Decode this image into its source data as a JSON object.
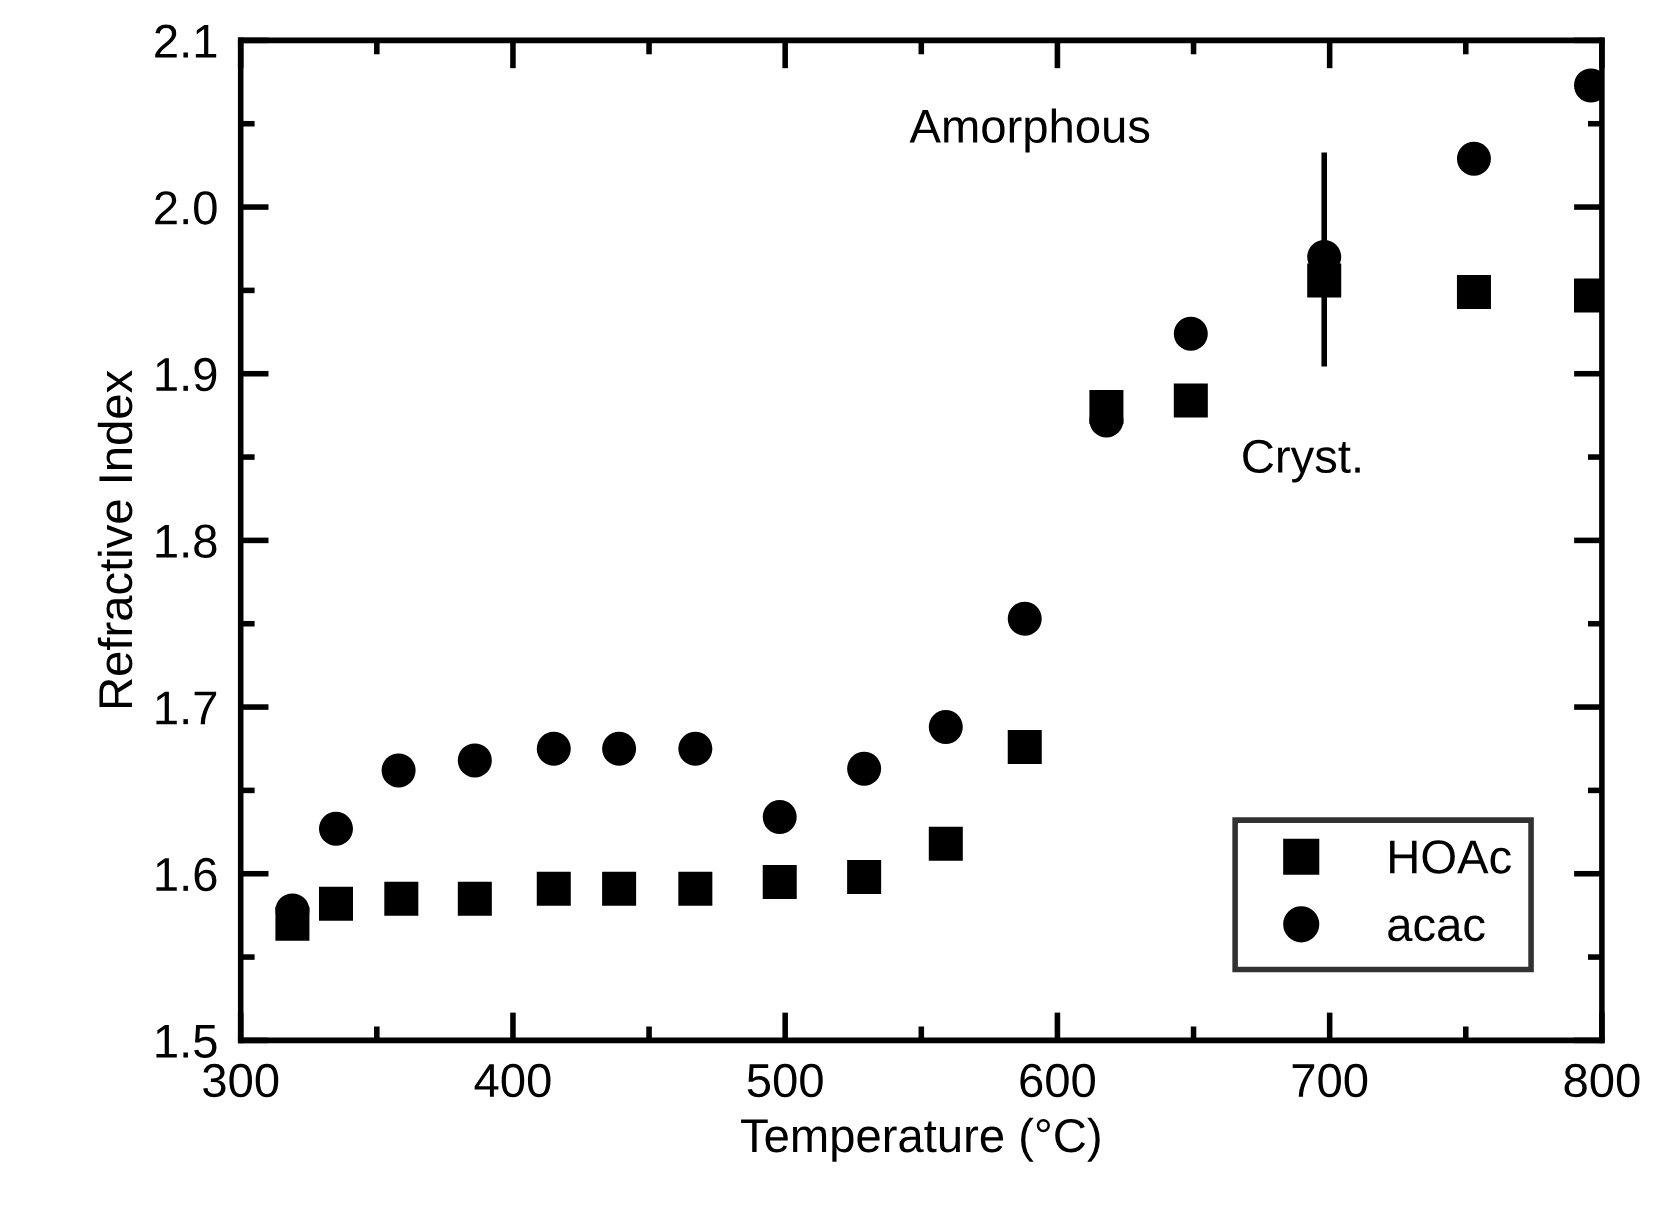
{
  "chart_data": {
    "type": "scatter",
    "xlabel": "Temperature (°C)",
    "ylabel": "Refractive Index",
    "xlim": [
      300,
      800
    ],
    "ylim": [
      1.5,
      2.1
    ],
    "xticks": [
      300,
      {
        "value": 350,
        "label": null
      },
      400,
      {
        "value": 450,
        "label": null
      },
      500,
      {
        "value": 550,
        "label": null
      },
      600,
      {
        "value": 650,
        "label": null
      },
      700,
      {
        "value": 750,
        "label": null
      },
      800
    ],
    "yticks": [
      1.5,
      {
        "value": 1.55,
        "label": null
      },
      1.6,
      {
        "value": 1.65,
        "label": null
      },
      1.7,
      {
        "value": 1.75,
        "label": null
      },
      1.8,
      {
        "value": 1.85,
        "label": null
      },
      1.9,
      {
        "value": 1.95,
        "label": null
      },
      {
        "value": 2.0,
        "label": "2.0"
      },
      {
        "value": 2.05,
        "label": null
      },
      2.1
    ],
    "grid": false,
    "legend": "bottom right",
    "series": [
      {
        "name": "HOAc",
        "color": "#000000",
        "marker": "square",
        "x": [
          319,
          335,
          359,
          386,
          415,
          439,
          467,
          498,
          529,
          559,
          588,
          618,
          649,
          698,
          753,
          796
        ],
        "values": [
          1.57,
          1.582,
          1.585,
          1.585,
          1.591,
          1.591,
          1.591,
          1.595,
          1.598,
          1.618,
          1.676,
          1.88,
          1.884,
          1.956,
          1.949,
          1.947
        ],
        "errors": [
          null,
          null,
          null,
          null,
          null,
          null,
          null,
          null,
          null,
          null,
          null,
          null,
          null,
          [
            1.906,
            2.031
          ],
          null,
          null
        ]
      },
      {
        "name": "acac",
        "color": "#000000",
        "marker": "circle",
        "x": [
          319,
          335,
          358,
          386,
          415,
          439,
          467,
          498,
          529,
          559,
          588,
          618,
          649,
          698,
          753,
          796
        ],
        "values": [
          1.578,
          1.627,
          1.662,
          1.668,
          1.675,
          1.675,
          1.675,
          1.634,
          1.663,
          1.688,
          1.753,
          1.872,
          1.924,
          1.97,
          2.029,
          2.073
        ]
      }
    ],
    "annotations": [
      "Amorphous",
      "Cryst."
    ]
  }
}
